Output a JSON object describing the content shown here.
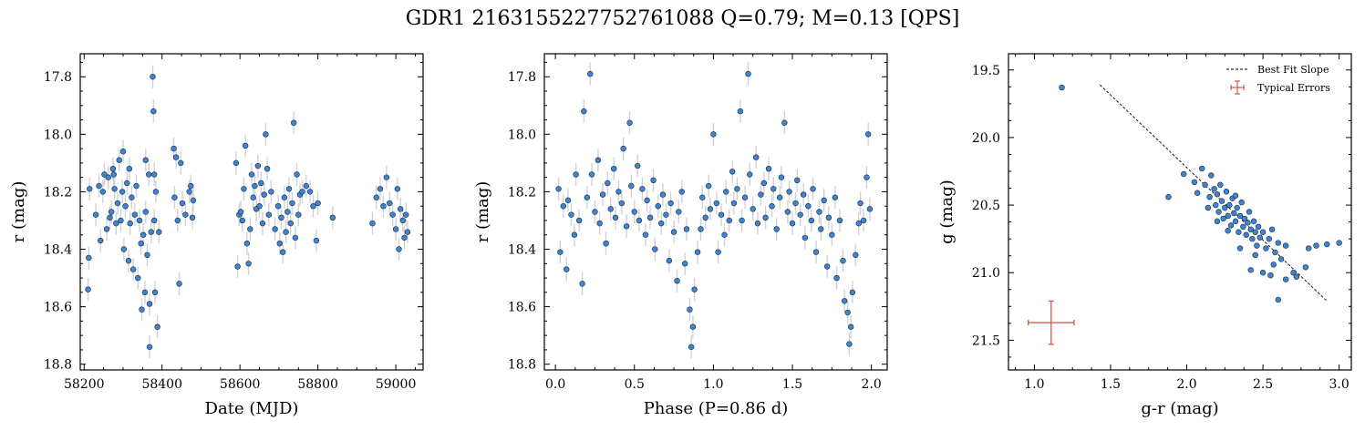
{
  "figure": {
    "title": "GDR1 2163155227752761088  Q=0.79; M=0.13 [QPS]"
  },
  "colors": {
    "point_fill": "#3f84d0",
    "point_edge": "#1b2b3d",
    "errorbar": "#cfd3d8",
    "typical_error": "#d1605d",
    "fit_line": "#000000"
  },
  "chart_data": [
    {
      "id": "lightcurve",
      "type": "scatter",
      "xlabel": "Date (MJD)",
      "ylabel": "r (mag)",
      "xlim": [
        58190,
        59070
      ],
      "ylim": [
        18.82,
        17.72
      ],
      "y_inverted": true,
      "xticks": [
        58200,
        58400,
        58600,
        58800,
        59000
      ],
      "yticks": [
        17.8,
        18.0,
        18.2,
        18.4,
        18.6,
        18.8
      ],
      "xtick_labels": [
        "58200",
        "58400",
        "58600",
        "58800",
        "59000"
      ],
      "ytick_labels": [
        "17.8",
        "18.0",
        "18.2",
        "18.4",
        "18.6",
        "18.8"
      ],
      "yerr": 0.04,
      "points": [
        [
          58210,
          18.54
        ],
        [
          58212,
          18.43
        ],
        [
          58214,
          18.19
        ],
        [
          58230,
          18.28
        ],
        [
          58238,
          18.18
        ],
        [
          58242,
          18.37
        ],
        [
          58248,
          18.2
        ],
        [
          58252,
          18.14
        ],
        [
          58258,
          18.33
        ],
        [
          58262,
          18.15
        ],
        [
          58266,
          18.29
        ],
        [
          58270,
          18.27
        ],
        [
          58274,
          18.12
        ],
        [
          58278,
          18.19
        ],
        [
          58282,
          18.31
        ],
        [
          58286,
          18.24
        ],
        [
          58290,
          18.09
        ],
        [
          58294,
          18.3
        ],
        [
          58298,
          18.2
        ],
        [
          58302,
          18.4
        ],
        [
          58306,
          18.25
        ],
        [
          58310,
          18.17
        ],
        [
          58314,
          18.44
        ],
        [
          58318,
          18.31
        ],
        [
          58322,
          18.22
        ],
        [
          58326,
          18.47
        ],
        [
          58330,
          18.28
        ],
        [
          58334,
          18.18
        ],
        [
          58338,
          18.5
        ],
        [
          58342,
          18.3
        ],
        [
          58346,
          18.38
        ],
        [
          58348,
          18.61
        ],
        [
          58352,
          18.35
        ],
        [
          58356,
          18.55
        ],
        [
          58358,
          18.27
        ],
        [
          58362,
          18.42
        ],
        [
          58366,
          18.14
        ],
        [
          58368,
          18.59
        ],
        [
          58372,
          18.34
        ],
        [
          58376,
          17.8
        ],
        [
          58378,
          17.92
        ],
        [
          58380,
          18.3
        ],
        [
          58382,
          18.55
        ],
        [
          58384,
          18.2
        ],
        [
          58388,
          18.67
        ],
        [
          58392,
          18.34
        ],
        [
          58368,
          18.74
        ],
        [
          58380,
          18.14
        ],
        [
          58358,
          18.09
        ],
        [
          58316,
          18.12
        ],
        [
          58300,
          18.06
        ],
        [
          58276,
          18.14
        ],
        [
          58430,
          18.05
        ],
        [
          58432,
          18.22
        ],
        [
          58436,
          18.08
        ],
        [
          58440,
          18.3
        ],
        [
          58444,
          18.52
        ],
        [
          58448,
          18.1
        ],
        [
          58452,
          18.24
        ],
        [
          58460,
          18.28
        ],
        [
          58470,
          18.2
        ],
        [
          58474,
          18.18
        ],
        [
          58478,
          18.29
        ],
        [
          58480,
          18.23
        ],
        [
          58590,
          18.1
        ],
        [
          58594,
          18.46
        ],
        [
          58598,
          18.28
        ],
        [
          58602,
          18.27
        ],
        [
          58606,
          18.3
        ],
        [
          58610,
          18.19
        ],
        [
          58614,
          18.04
        ],
        [
          58618,
          18.38
        ],
        [
          58622,
          18.45
        ],
        [
          58626,
          18.33
        ],
        [
          58630,
          18.14
        ],
        [
          58634,
          18.22
        ],
        [
          58638,
          18.18
        ],
        [
          58642,
          18.26
        ],
        [
          58646,
          18.11
        ],
        [
          58650,
          18.25
        ],
        [
          58654,
          18.17
        ],
        [
          58658,
          18.31
        ],
        [
          58662,
          18.21
        ],
        [
          58666,
          18.0
        ],
        [
          58670,
          18.12
        ],
        [
          58674,
          18.28
        ],
        [
          58680,
          18.2
        ],
        [
          58690,
          18.33
        ],
        [
          58698,
          18.25
        ],
        [
          58702,
          18.38
        ],
        [
          58706,
          18.29
        ],
        [
          58710,
          18.41
        ],
        [
          58714,
          18.22
        ],
        [
          58718,
          18.34
        ],
        [
          58722,
          18.27
        ],
        [
          58726,
          18.19
        ],
        [
          58730,
          18.31
        ],
        [
          58734,
          18.24
        ],
        [
          58738,
          17.96
        ],
        [
          58742,
          18.36
        ],
        [
          58746,
          18.14
        ],
        [
          58750,
          18.28
        ],
        [
          58754,
          18.21
        ],
        [
          58760,
          18.2
        ],
        [
          58770,
          18.18
        ],
        [
          58780,
          18.2
        ],
        [
          58788,
          18.25
        ],
        [
          58796,
          18.37
        ],
        [
          58800,
          18.24
        ],
        [
          58838,
          18.29
        ],
        [
          58940,
          18.31
        ],
        [
          58950,
          18.22
        ],
        [
          58960,
          18.19
        ],
        [
          58968,
          18.25
        ],
        [
          58976,
          18.15
        ],
        [
          58984,
          18.24
        ],
        [
          58992,
          18.28
        ],
        [
          59000,
          18.33
        ],
        [
          59004,
          18.19
        ],
        [
          59008,
          18.4
        ],
        [
          59012,
          18.26
        ],
        [
          59018,
          18.3
        ],
        [
          59022,
          18.36
        ],
        [
          59026,
          18.28
        ],
        [
          59030,
          18.34
        ]
      ]
    },
    {
      "id": "phasecurve",
      "type": "scatter",
      "xlabel": "Phase (P=0.86 d)",
      "ylabel": "r (mag)",
      "xlim": [
        -0.07,
        2.1
      ],
      "ylim": [
        18.82,
        17.72
      ],
      "y_inverted": true,
      "xticks": [
        0.0,
        0.5,
        1.0,
        1.5,
        2.0
      ],
      "yticks": [
        17.8,
        18.0,
        18.2,
        18.4,
        18.6,
        18.8
      ],
      "xtick_labels": [
        "0.0",
        "0.5",
        "1.0",
        "1.5",
        "2.0"
      ],
      "ytick_labels": [
        "17.8",
        "18.0",
        "18.2",
        "18.4",
        "18.6",
        "18.8"
      ],
      "yerr": 0.04,
      "points": [
        [
          0.02,
          18.19
        ],
        [
          0.03,
          18.41
        ],
        [
          0.05,
          18.25
        ],
        [
          0.07,
          18.47
        ],
        [
          0.08,
          18.23
        ],
        [
          0.1,
          18.28
        ],
        [
          0.12,
          18.35
        ],
        [
          0.13,
          18.14
        ],
        [
          0.15,
          18.3
        ],
        [
          0.17,
          18.52
        ],
        [
          0.18,
          17.92
        ],
        [
          0.2,
          18.22
        ],
        [
          0.22,
          17.79
        ],
        [
          0.23,
          18.14
        ],
        [
          0.25,
          18.27
        ],
        [
          0.27,
          18.09
        ],
        [
          0.28,
          18.31
        ],
        [
          0.3,
          18.21
        ],
        [
          0.32,
          18.38
        ],
        [
          0.33,
          18.17
        ],
        [
          0.35,
          18.26
        ],
        [
          0.37,
          18.12
        ],
        [
          0.38,
          18.29
        ],
        [
          0.4,
          18.2
        ],
        [
          0.42,
          18.24
        ],
        [
          0.43,
          18.05
        ],
        [
          0.45,
          18.32
        ],
        [
          0.47,
          17.96
        ],
        [
          0.48,
          18.18
        ],
        [
          0.5,
          18.27
        ],
        [
          0.52,
          18.11
        ],
        [
          0.53,
          18.3
        ],
        [
          0.55,
          18.19
        ],
        [
          0.57,
          18.35
        ],
        [
          0.58,
          18.23
        ],
        [
          0.6,
          18.29
        ],
        [
          0.62,
          18.16
        ],
        [
          0.63,
          18.4
        ],
        [
          0.65,
          18.25
        ],
        [
          0.67,
          18.31
        ],
        [
          0.68,
          18.21
        ],
        [
          0.7,
          18.28
        ],
        [
          0.72,
          18.44
        ],
        [
          0.73,
          18.24
        ],
        [
          0.75,
          18.34
        ],
        [
          0.77,
          18.51
        ],
        [
          0.78,
          18.27
        ],
        [
          0.8,
          18.2
        ],
        [
          0.82,
          18.45
        ],
        [
          0.83,
          18.33
        ],
        [
          0.85,
          18.61
        ],
        [
          0.86,
          18.74
        ],
        [
          0.87,
          18.67
        ],
        [
          0.88,
          18.54
        ],
        [
          0.9,
          18.41
        ],
        [
          0.92,
          18.33
        ],
        [
          0.93,
          18.22
        ],
        [
          0.95,
          18.29
        ],
        [
          0.97,
          18.18
        ],
        [
          0.98,
          18.26
        ],
        [
          1.0,
          18.0
        ],
        [
          1.02,
          18.24
        ],
        [
          1.03,
          18.41
        ],
        [
          1.05,
          18.28
        ],
        [
          1.07,
          18.35
        ],
        [
          1.08,
          18.2
        ],
        [
          1.1,
          18.3
        ],
        [
          1.12,
          18.13
        ],
        [
          1.13,
          18.24
        ],
        [
          1.15,
          18.19
        ],
        [
          1.17,
          17.92
        ],
        [
          1.18,
          18.3
        ],
        [
          1.2,
          18.22
        ],
        [
          1.22,
          17.79
        ],
        [
          1.23,
          18.14
        ],
        [
          1.25,
          18.26
        ],
        [
          1.27,
          18.08
        ],
        [
          1.28,
          18.31
        ],
        [
          1.3,
          18.21
        ],
        [
          1.32,
          18.17
        ],
        [
          1.33,
          18.29
        ],
        [
          1.35,
          18.12
        ],
        [
          1.37,
          18.25
        ],
        [
          1.38,
          18.19
        ],
        [
          1.4,
          18.33
        ],
        [
          1.42,
          18.22
        ],
        [
          1.43,
          18.15
        ],
        [
          1.45,
          17.96
        ],
        [
          1.47,
          18.27
        ],
        [
          1.48,
          18.2
        ],
        [
          1.5,
          18.31
        ],
        [
          1.52,
          18.24
        ],
        [
          1.53,
          18.16
        ],
        [
          1.55,
          18.28
        ],
        [
          1.57,
          18.21
        ],
        [
          1.58,
          18.36
        ],
        [
          1.6,
          18.25
        ],
        [
          1.62,
          18.3
        ],
        [
          1.63,
          18.19
        ],
        [
          1.65,
          18.41
        ],
        [
          1.67,
          18.27
        ],
        [
          1.68,
          18.33
        ],
        [
          1.7,
          18.23
        ],
        [
          1.72,
          18.46
        ],
        [
          1.73,
          18.29
        ],
        [
          1.75,
          18.35
        ],
        [
          1.77,
          18.22
        ],
        [
          1.78,
          18.5
        ],
        [
          1.8,
          18.3
        ],
        [
          1.82,
          18.44
        ],
        [
          1.83,
          18.58
        ],
        [
          1.85,
          18.62
        ],
        [
          1.86,
          18.73
        ],
        [
          1.87,
          18.67
        ],
        [
          1.88,
          18.55
        ],
        [
          1.9,
          18.42
        ],
        [
          1.92,
          18.31
        ],
        [
          1.93,
          18.24
        ],
        [
          1.95,
          18.3
        ],
        [
          1.97,
          18.15
        ],
        [
          1.98,
          18.0
        ],
        [
          1.99,
          18.26
        ]
      ]
    },
    {
      "id": "colormag",
      "type": "scatter",
      "xlabel": "g-r (mag)",
      "ylabel": "g (mag)",
      "xlim": [
        0.83,
        3.08
      ],
      "ylim": [
        21.72,
        19.38
      ],
      "y_inverted": true,
      "xticks": [
        1.0,
        1.5,
        2.0,
        2.5,
        3.0
      ],
      "yticks": [
        19.5,
        20.0,
        20.5,
        21.0,
        21.5
      ],
      "xtick_labels": [
        "1.0",
        "1.5",
        "2.0",
        "2.5",
        "3.0"
      ],
      "ytick_labels": [
        "19.5",
        "20.0",
        "20.5",
        "21.0",
        "21.5"
      ],
      "legend": {
        "placement": "top-right",
        "entries": [
          "Best Fit Slope",
          "Typical Errors"
        ]
      },
      "fit_line": [
        [
          1.43,
          19.61
        ],
        [
          2.92,
          21.21
        ]
      ],
      "typical_error": {
        "x": 1.11,
        "y": 21.37,
        "xerr": 0.15,
        "yerr": 0.16
      },
      "points": [
        [
          1.18,
          19.63
        ],
        [
          1.88,
          20.44
        ],
        [
          1.98,
          20.27
        ],
        [
          2.05,
          20.33
        ],
        [
          2.07,
          20.41
        ],
        [
          2.1,
          20.23
        ],
        [
          2.12,
          20.35
        ],
        [
          2.15,
          20.44
        ],
        [
          2.16,
          20.28
        ],
        [
          2.18,
          20.38
        ],
        [
          2.19,
          20.5
        ],
        [
          2.2,
          20.42
        ],
        [
          2.21,
          20.55
        ],
        [
          2.22,
          20.35
        ],
        [
          2.23,
          20.47
        ],
        [
          2.24,
          20.6
        ],
        [
          2.25,
          20.52
        ],
        [
          2.26,
          20.4
        ],
        [
          2.27,
          20.58
        ],
        [
          2.28,
          20.5
        ],
        [
          2.29,
          20.65
        ],
        [
          2.3,
          20.45
        ],
        [
          2.31,
          20.56
        ],
        [
          2.32,
          20.62
        ],
        [
          2.33,
          20.52
        ],
        [
          2.34,
          20.7
        ],
        [
          2.35,
          20.58
        ],
        [
          2.36,
          20.48
        ],
        [
          2.37,
          20.66
        ],
        [
          2.38,
          20.6
        ],
        [
          2.39,
          20.72
        ],
        [
          2.4,
          20.63
        ],
        [
          2.41,
          20.55
        ],
        [
          2.42,
          20.68
        ],
        [
          2.43,
          20.75
        ],
        [
          2.44,
          20.62
        ],
        [
          2.45,
          20.7
        ],
        [
          2.46,
          20.8
        ],
        [
          2.47,
          20.66
        ],
        [
          2.48,
          20.74
        ],
        [
          2.5,
          20.7
        ],
        [
          2.52,
          20.82
        ],
        [
          2.54,
          20.75
        ],
        [
          2.56,
          20.68
        ],
        [
          2.58,
          20.85
        ],
        [
          2.6,
          20.78
        ],
        [
          2.62,
          20.9
        ],
        [
          2.65,
          20.8
        ],
        [
          2.5,
          21.0
        ],
        [
          2.55,
          21.02
        ],
        [
          2.6,
          21.2
        ],
        [
          2.65,
          21.05
        ],
        [
          2.7,
          21.0
        ],
        [
          2.72,
          21.03
        ],
        [
          2.78,
          20.96
        ],
        [
          2.8,
          20.82
        ],
        [
          2.85,
          20.8
        ],
        [
          2.92,
          20.79
        ],
        [
          3.0,
          20.78
        ],
        [
          2.42,
          20.98
        ],
        [
          2.35,
          20.82
        ],
        [
          2.27,
          20.69
        ],
        [
          2.2,
          20.62
        ],
        [
          2.14,
          20.52
        ],
        [
          2.32,
          20.43
        ],
        [
          2.45,
          20.87
        ],
        [
          2.57,
          20.94
        ]
      ]
    }
  ]
}
